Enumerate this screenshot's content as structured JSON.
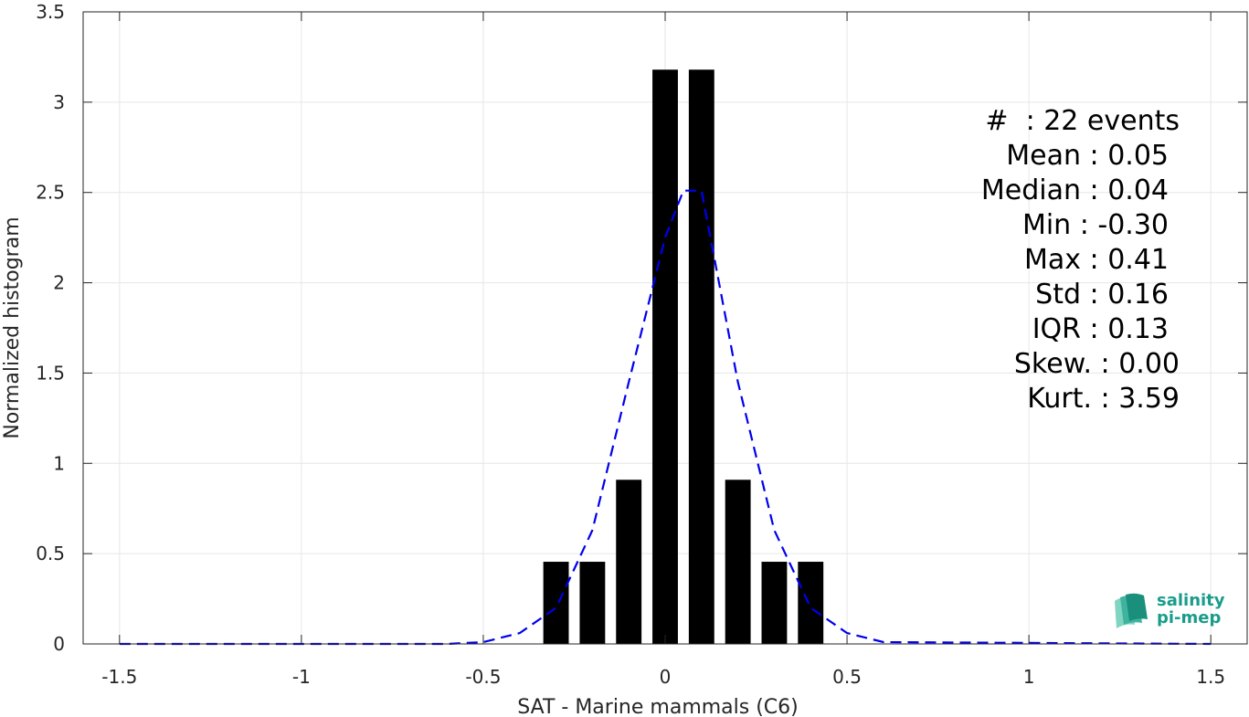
{
  "chart_data": {
    "type": "bar",
    "xlabel": "SAT - Marine mammals (C6)",
    "ylabel": "Normalized histogram",
    "xlim": [
      -1.6,
      1.6
    ],
    "ylim": [
      0,
      3.5
    ],
    "x_ticks": [
      "-1.5",
      "-1",
      "-0.5",
      "0",
      "0.5",
      "1",
      "1.5"
    ],
    "x_tick_values": [
      -1.5,
      -1,
      -0.5,
      0,
      0.5,
      1,
      1.5
    ],
    "y_ticks": [
      "0",
      "0.5",
      "1",
      "1.5",
      "2",
      "2.5",
      "3",
      "3.5"
    ],
    "y_tick_values": [
      0,
      0.5,
      1,
      1.5,
      2,
      2.5,
      3,
      3.5
    ],
    "grid": true,
    "bars": {
      "x": [
        -0.3,
        -0.2,
        -0.1,
        0.0,
        0.1,
        0.2,
        0.3,
        0.4
      ],
      "values": [
        0.455,
        0.455,
        0.909,
        3.18,
        3.18,
        0.909,
        0.455,
        0.455
      ],
      "width": 0.07,
      "color": "#000000"
    },
    "fit": {
      "style": "dashed",
      "color": "#0000ee",
      "x": [
        -1.5,
        -0.6,
        -0.5,
        -0.4,
        -0.3,
        -0.2,
        -0.1,
        0.0,
        0.05,
        0.1,
        0.2,
        0.3,
        0.4,
        0.5,
        0.6,
        1.5
      ],
      "values": [
        0,
        0,
        0.01,
        0.06,
        0.2,
        0.63,
        1.45,
        2.25,
        2.51,
        2.51,
        1.45,
        0.63,
        0.2,
        0.06,
        0.01,
        0
      ]
    }
  },
  "stats": [
    "#  : 22 events",
    "Mean : 0.05",
    "Median : 0.04",
    "Min : -0.30",
    "Max : 0.41",
    "Std : 0.16",
    "IQR : 0.13",
    "Skew. : 0.00",
    "Kurt. : 3.59"
  ],
  "logo": {
    "line1": "salinity",
    "line2": "pi-mep",
    "color": "#1a9c8a"
  }
}
